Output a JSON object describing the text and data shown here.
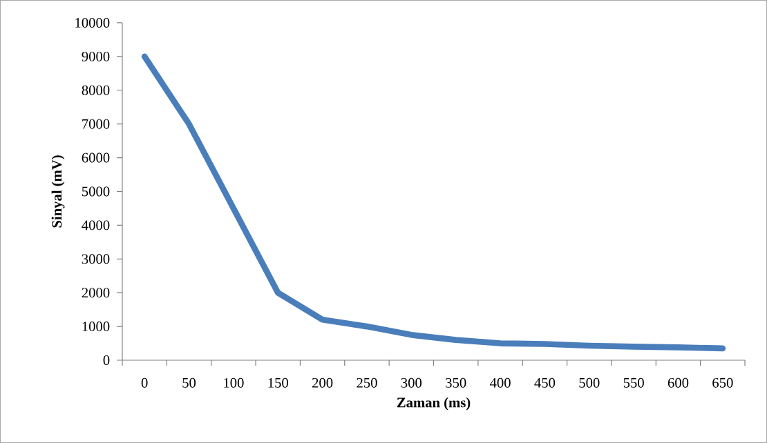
{
  "chart_data": {
    "type": "line",
    "xlabel": "Zaman (ms)",
    "ylabel": "Sinyal (mV)",
    "categories": [
      "0",
      "50",
      "100",
      "150",
      "200",
      "250",
      "300",
      "350",
      "400",
      "450",
      "500",
      "550",
      "600",
      "650"
    ],
    "values": [
      9000,
      7000,
      4500,
      2000,
      1200,
      1000,
      750,
      600,
      500,
      480,
      430,
      400,
      380,
      350
    ],
    "color": "#4a7ebb",
    "ylim": [
      0,
      10000
    ],
    "yticks": [
      0,
      1000,
      2000,
      3000,
      4000,
      5000,
      6000,
      7000,
      8000,
      9000,
      10000
    ]
  }
}
